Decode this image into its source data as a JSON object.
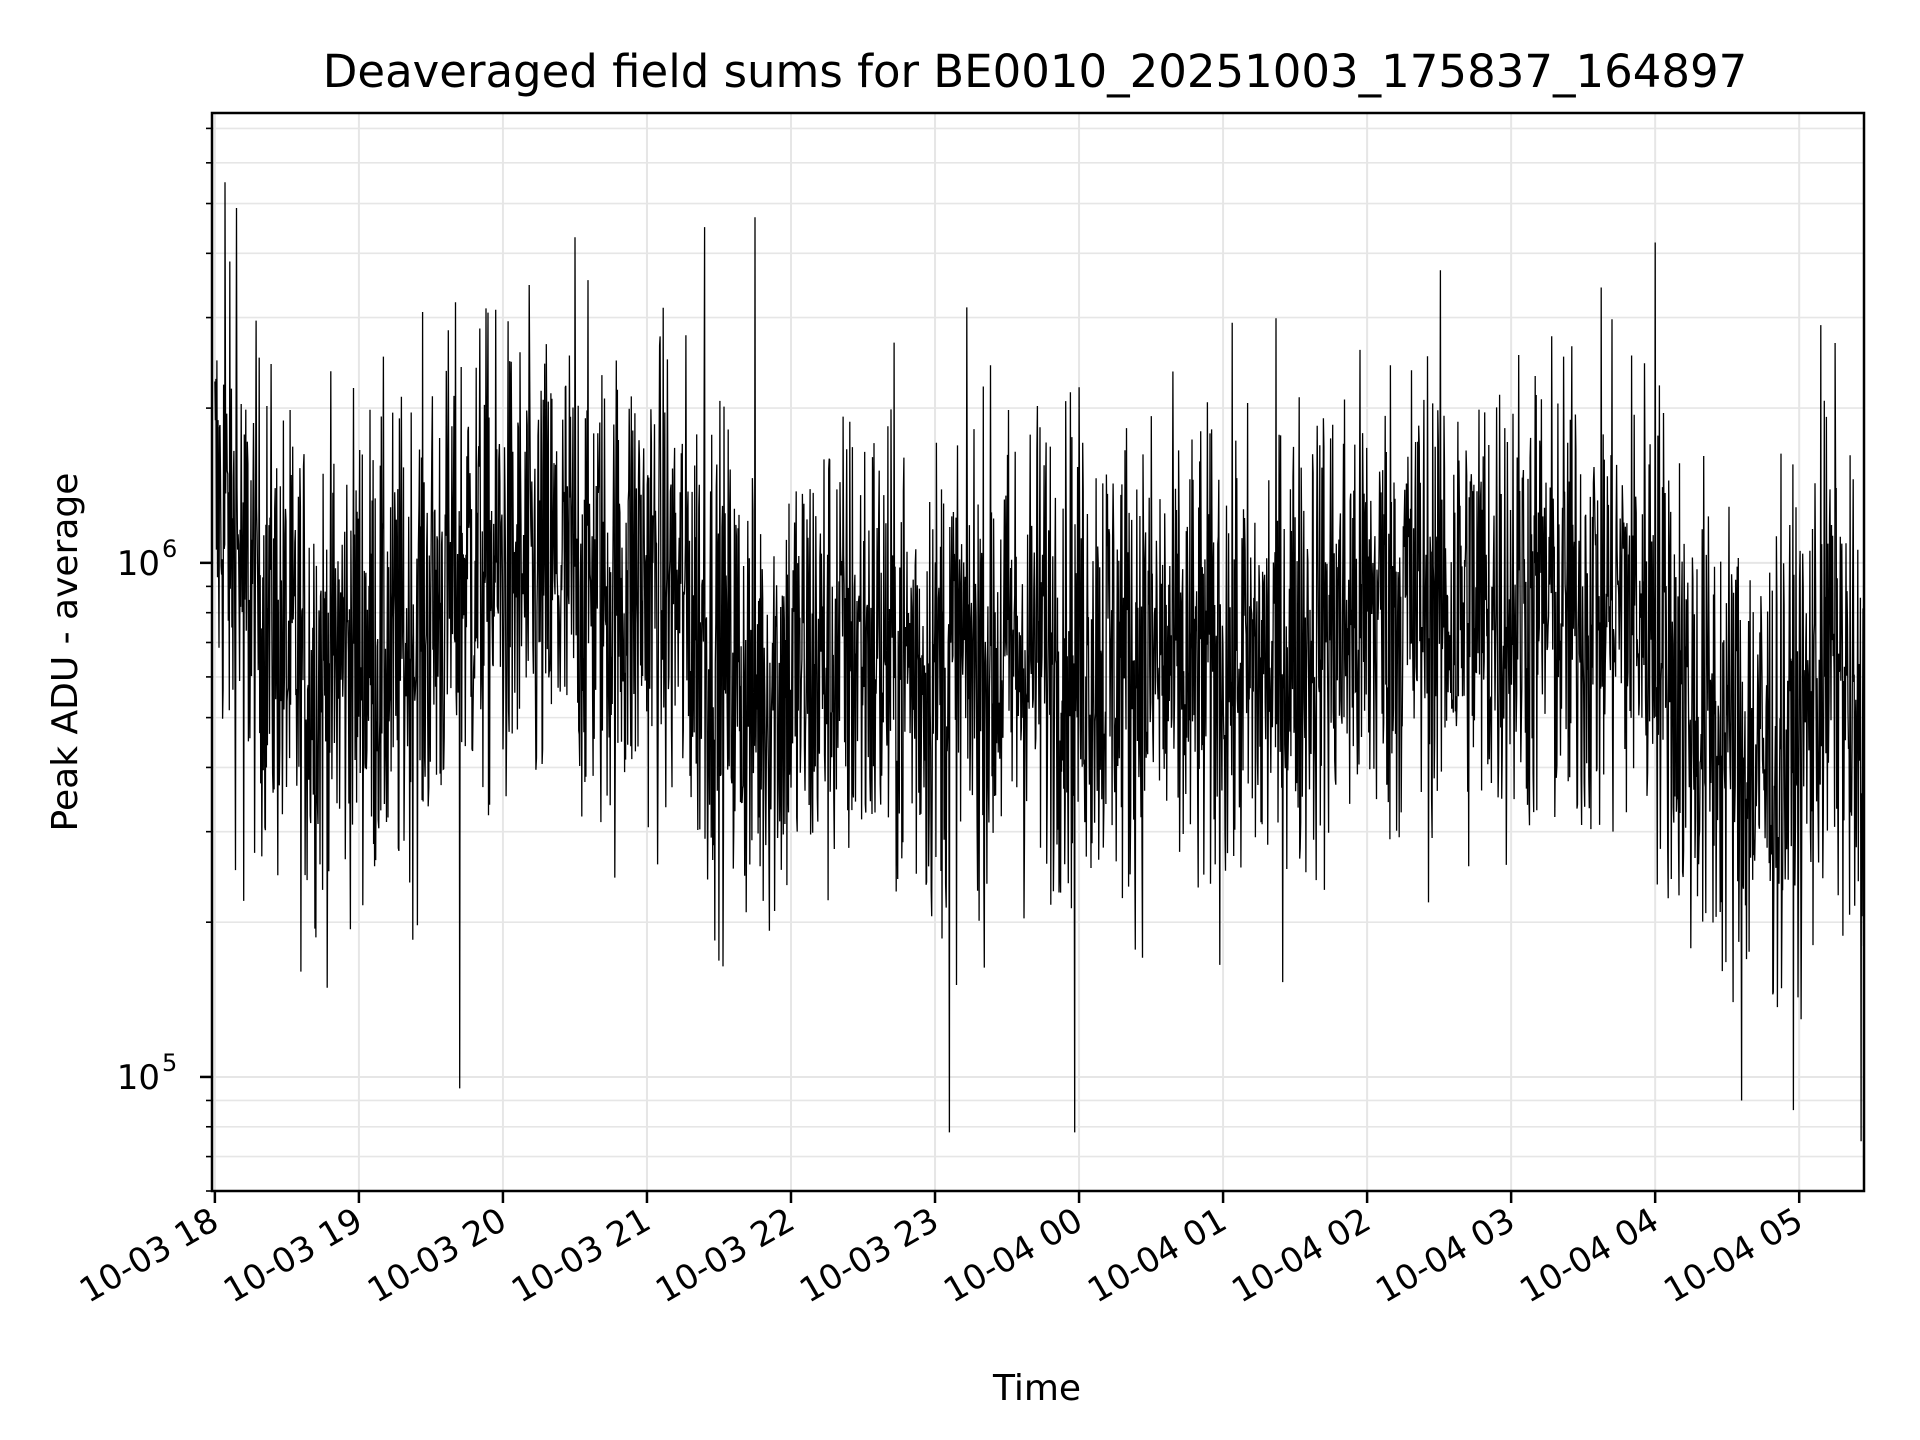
{
  "chart_data": {
    "type": "line",
    "title": "Deaveraged field sums for BE0010_20251003_175837_164897",
    "xlabel": "Time",
    "ylabel": "Peak ADU - average",
    "yscale": "log",
    "ylim": [
      60000,
      7500000
    ],
    "xlim_hours_from_start": [
      -0.02,
      11.45
    ],
    "x_ticks": [
      "10-03 18",
      "10-03 19",
      "10-03 20",
      "10-03 21",
      "10-03 22",
      "10-03 23",
      "10-04 00",
      "10-04 01",
      "10-04 02",
      "10-04 03",
      "10-04 04",
      "10-04 05"
    ],
    "y_ticks": [
      {
        "base": "10",
        "exp": "5",
        "value": 100000
      },
      {
        "base": "10",
        "exp": "6",
        "value": 1000000
      }
    ],
    "grid": true,
    "line_color": "#000000",
    "envelope_hours": [
      0.0,
      0.25,
      0.5,
      0.75,
      1.0,
      1.25,
      1.5,
      1.75,
      2.0,
      2.25,
      2.5,
      2.75,
      3.0,
      3.25,
      3.5,
      3.75,
      4.0,
      4.25,
      4.5,
      4.75,
      5.0,
      5.25,
      5.5,
      5.75,
      6.0,
      6.25,
      6.5,
      6.75,
      7.0,
      7.25,
      7.5,
      7.75,
      8.0,
      8.25,
      8.5,
      8.75,
      9.0,
      9.25,
      9.5,
      9.75,
      10.0,
      10.25,
      10.5,
      10.75,
      11.0,
      11.25,
      11.45
    ],
    "envelope_median": [
      1300000,
      900000,
      650000,
      600000,
      700000,
      650000,
      800000,
      1000000,
      950000,
      900000,
      950000,
      850000,
      950000,
      850000,
      650000,
      550000,
      600000,
      650000,
      700000,
      650000,
      600000,
      650000,
      650000,
      700000,
      700000,
      650000,
      650000,
      600000,
      650000,
      600000,
      700000,
      750000,
      800000,
      850000,
      850000,
      800000,
      850000,
      850000,
      800000,
      850000,
      800000,
      500000,
      450000,
      400000,
      450000,
      700000,
      350000
    ],
    "series": [
      {
        "name": "Peak ADU - average",
        "notable_points": [
          {
            "x_hours": 0.07,
            "y": 5500000
          },
          {
            "x_hours": 0.15,
            "y": 4900000
          },
          {
            "x_hours": 0.2,
            "y": 220000
          },
          {
            "x_hours": 1.7,
            "y": 95000
          },
          {
            "x_hours": 2.5,
            "y": 4300000
          },
          {
            "x_hours": 3.4,
            "y": 4500000
          },
          {
            "x_hours": 3.75,
            "y": 4700000
          },
          {
            "x_hours": 5.1,
            "y": 78000
          },
          {
            "x_hours": 5.97,
            "y": 78000
          },
          {
            "x_hours": 10.0,
            "y": 4200000
          },
          {
            "x_hours": 10.6,
            "y": 90000
          },
          {
            "x_hours": 11.15,
            "y": 2900000
          },
          {
            "x_hours": 11.43,
            "y": 75000
          }
        ]
      }
    ]
  }
}
